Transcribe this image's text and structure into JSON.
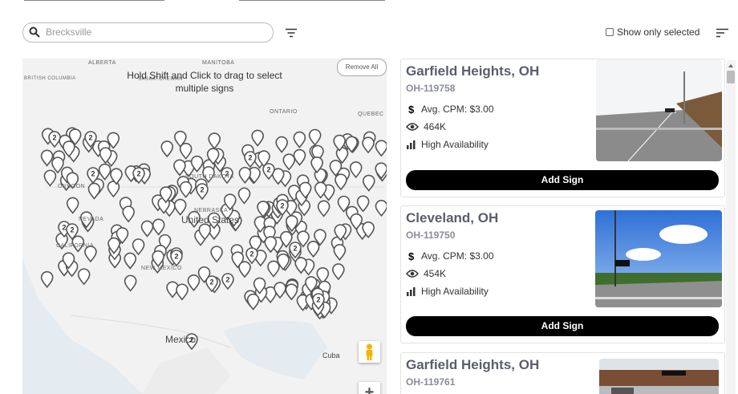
{
  "search": {
    "placeholder": "Brecksville"
  },
  "show_only_selected": "Show only selected",
  "map": {
    "hint": "Hold Shift and Click to drag to select multiple signs",
    "remove_all": "Remove All",
    "labels": [
      "ALBERTA",
      "MANITOBA",
      "BRITISH COLUMBIA",
      "SASKATCHEWAN",
      "ONTARIO",
      "QUEBEC",
      "OREGON",
      "SOUTH DAKOTA",
      "NEBRASKA",
      "NEVADA",
      "CALIFORNIA",
      "NEW MEXICO",
      "United States",
      "Mexico",
      "Cuba"
    ],
    "clusters": [
      2,
      2,
      2,
      2,
      2,
      2,
      2,
      2,
      2,
      2,
      2,
      2,
      2,
      2,
      2,
      2,
      2,
      2,
      2,
      2
    ],
    "zoom_in": "+"
  },
  "listings": [
    {
      "title": "Garfield Heights, OH",
      "id": "OH-119758",
      "cpm": "Avg. CPM: $3.00",
      "impressions": "464K",
      "availability": "High Availability",
      "button": "Add Sign"
    },
    {
      "title": "Cleveland, OH",
      "id": "OH-119750",
      "cpm": "Avg. CPM: $3.00",
      "impressions": "454K",
      "availability": "High Availability",
      "button": "Add Sign"
    },
    {
      "title": "Garfield Heights, OH",
      "id": "OH-119761"
    }
  ]
}
